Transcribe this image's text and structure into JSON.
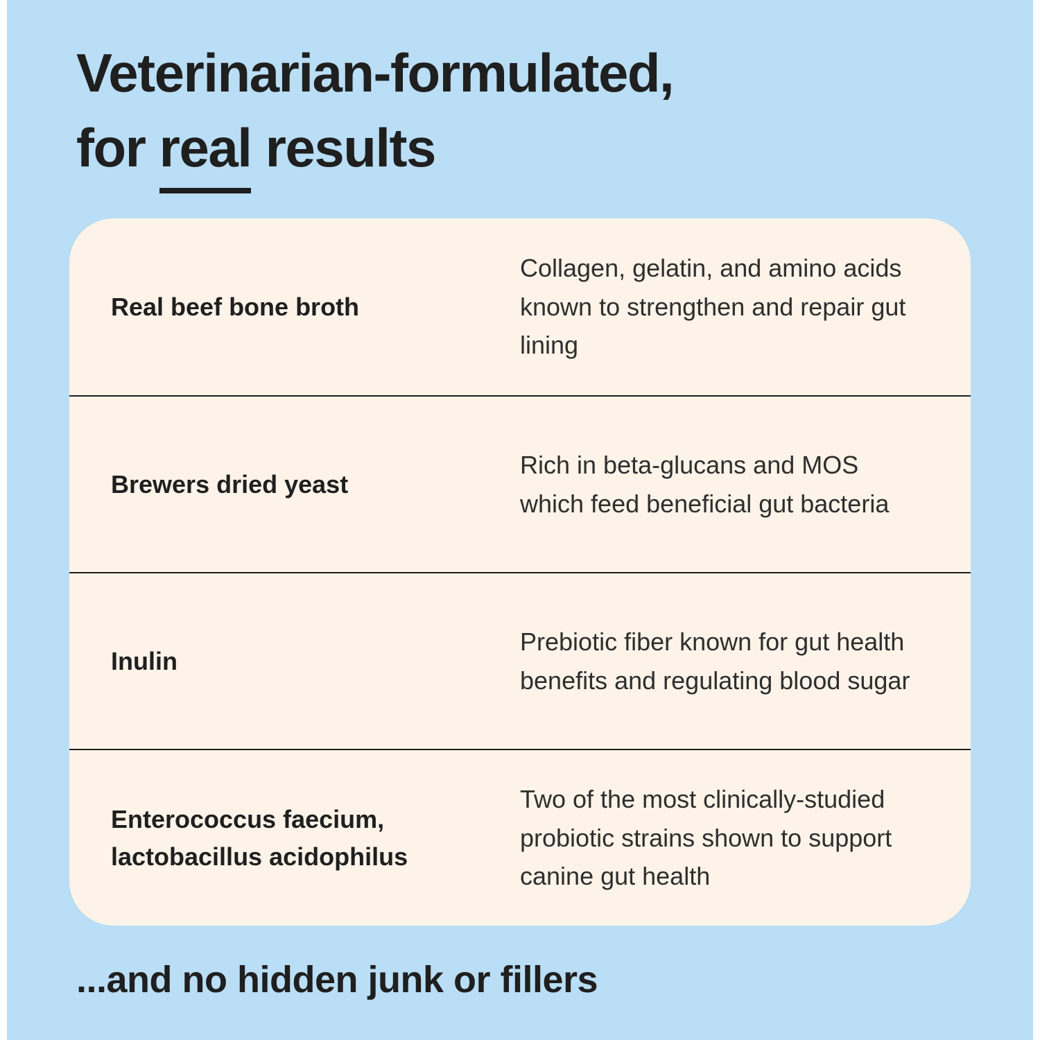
{
  "colors": {
    "background": "#b9def5",
    "card": "#fdf3e8",
    "text": "#1f1f1f",
    "divider": "#1f1f1f"
  },
  "page": {
    "heading_line1": "Veterinarian-formulated,",
    "heading_line2_prefix": "for ",
    "heading_line2_underline": "real",
    "heading_line2_suffix": " results",
    "footer": "...and no hidden junk or fillers"
  },
  "table": {
    "rows": [
      {
        "term": "Real beef bone broth",
        "description": "Collagen, gelatin, and amino acids known to strengthen and repair gut lining"
      },
      {
        "term": "Brewers dried yeast",
        "description": "Rich in beta-glucans and MOS which feed beneficial gut bacteria"
      },
      {
        "term": "Inulin",
        "description": "Prebiotic fiber known for gut health benefits and regulating blood sugar"
      },
      {
        "term": "Enterococcus faecium, lactobacillus acidophilus",
        "description": "Two of the most clinically-studied probiotic strains shown to support canine gut health"
      }
    ]
  }
}
